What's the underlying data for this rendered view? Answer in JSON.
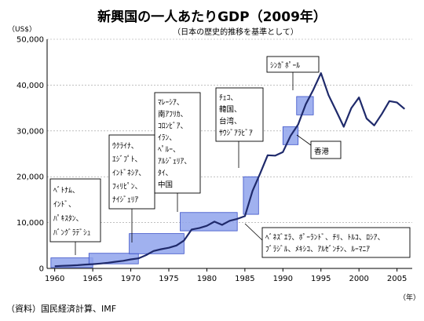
{
  "chart_data": {
    "type": "line",
    "title": "新興国の一人あたりGDP（2009年）",
    "subtitle": "（日本の歴史的推移を基準として）",
    "y_unit": "（US$）",
    "x_unit": "（年）",
    "source_note": "（資料）国民経済計算、IMF",
    "xlim": [
      1959,
      2007
    ],
    "ylim": [
      0,
      50000
    ],
    "x_ticks": [
      1960,
      1965,
      1970,
      1975,
      1980,
      1985,
      1990,
      1995,
      2000,
      2005
    ],
    "y_ticks": [
      0,
      10000,
      20000,
      30000,
      40000,
      50000
    ],
    "y_tick_labels": [
      "0",
      "10,000",
      "20,000",
      "30,000",
      "40,000",
      "50,000"
    ],
    "grid": "horizontal",
    "line_color": "#1f2a6b",
    "box_fill": "#8fa3ec",
    "series": [
      {
        "x": [
          1960,
          1961,
          1962,
          1963,
          1964,
          1965,
          1966,
          1967,
          1968,
          1969,
          1970,
          1971,
          1972,
          1973,
          1974,
          1975,
          1976,
          1977,
          1978,
          1979,
          1980,
          1981,
          1982,
          1983,
          1984,
          1985,
          1986,
          1987,
          1988,
          1989,
          1990,
          1991,
          1992,
          1993,
          1994,
          1995,
          1996,
          1997,
          1998,
          1999,
          2000,
          2001,
          2002,
          2003,
          2004,
          2005,
          2006
        ],
        "y": [
          480,
          560,
          620,
          700,
          840,
          920,
          1060,
          1230,
          1450,
          1660,
          1970,
          2200,
          2900,
          3800,
          4200,
          4500,
          5000,
          6100,
          8500,
          8800,
          9300,
          10200,
          9500,
          10400,
          10800,
          11400,
          16900,
          20700,
          24700,
          24600,
          25400,
          28900,
          31400,
          35800,
          39000,
          42600,
          37800,
          34400,
          30900,
          35000,
          37300,
          32700,
          31200,
          33700,
          36500,
          36200,
          34800
        ]
      }
    ],
    "boxes": [
      {
        "x": [
          1959.5,
          1965
        ],
        "y": [
          200,
          2300
        ]
      },
      {
        "x": [
          1964.5,
          1971
        ],
        "y": [
          1000,
          3300
        ]
      },
      {
        "x": [
          1969.8,
          1977
        ],
        "y": [
          3200,
          7600
        ]
      },
      {
        "x": [
          1976.5,
          1984
        ],
        "y": [
          8200,
          12200
        ]
      },
      {
        "x": [
          1984.8,
          1986.8
        ],
        "y": [
          11800,
          20000
        ]
      },
      {
        "x": [
          1990,
          1992
        ],
        "y": [
          27000,
          30900
        ]
      },
      {
        "x": [
          1991.8,
          1994
        ],
        "y": [
          33500,
          37500
        ]
      }
    ],
    "annotations": [
      {
        "lines": [
          "ﾍﾞﾄﾅﾑ、",
          "ｲﾝﾄﾞ、",
          "ﾊﾟｷｽﾀﾝ、",
          "ﾊﾞﾝｸﾞﾗﾃﾞｼｭ"
        ]
      },
      {
        "lines": [
          "ｳｸﾗｲﾅ、",
          "ｴｼﾞﾌﾟﾄ、",
          "ｲﾝﾄﾞﾈｼｱ、",
          "ﾌｨﾘﾋﾟﾝ、",
          "ﾅｲｼﾞｪﾘｱ"
        ]
      },
      {
        "lines": [
          "ﾏﾚｰｼｱ、",
          "南ｱﾌﾘｶ、",
          "ｺﾛﾝﾋﾞｱ、",
          "ｲﾗﾝ、",
          "ﾍﾟﾙｰ、",
          "ｱﾙｼﾞｪﾘｱ、",
          "ﾀｲ、",
          "中国"
        ]
      },
      {
        "lines": [
          "ﾁｪｺ、",
          "韓国、",
          "台湾、",
          "ｻｳｼﾞｱﾗﾋﾞｱ"
        ]
      },
      {
        "lines": [
          "ｼﾝｶﾞﾎﾟｰﾙ"
        ]
      },
      {
        "lines": [
          "香港"
        ]
      },
      {
        "lines": [
          "ﾍﾞﾈｽﾞｴﾗ、ﾎﾟｰﾗﾝﾄﾞ、ﾁﾘ、ﾄﾙｺ、ﾛｼｱ、",
          "ﾌﾞﾗｼﾞﾙ、ﾒｷｼｺ、ｱﾙｾﾞﾝﾁﾝ、ﾙｰﾏﾆｱ"
        ]
      }
    ]
  }
}
